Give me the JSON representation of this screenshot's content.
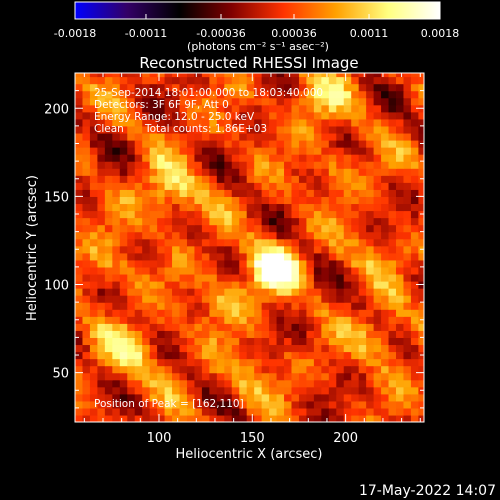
{
  "window": {
    "timestamp": "17-May-2022 14:07"
  },
  "colorbar": {
    "ticks": [
      "-0.0018",
      "-0.0011",
      "-0.00036",
      "0.00036",
      "0.0011",
      "0.0018"
    ],
    "unit_label": "(photons cm⁻² s⁻¹ asec⁻²)"
  },
  "image_info": {
    "time_range": "25-Sep-2014 18:01:00.000 to 18:03:40.000",
    "detectors": "Detectors: 3F 6F 9F, Att 0",
    "energy_range": "Energy Range: 12.0 - 25.0 keV",
    "clean_label": "Clean",
    "total_counts": "Total counts: 1.86E+03",
    "peak_position": "Position of Peak = [162,110]"
  },
  "chart_data": {
    "type": "heatmap",
    "title": "Reconstructed RHESSI Image",
    "xlabel": "Heliocentric X (arcsec)",
    "ylabel": "Heliocentric Y (arcsec)",
    "xlim": [
      55,
      242
    ],
    "ylim": [
      22,
      220
    ],
    "xticks": [
      100,
      150,
      200
    ],
    "yticks": [
      50,
      100,
      150,
      200
    ],
    "colorbar_range": [
      -0.0018,
      0.0018
    ],
    "colormap": [
      "#0000ff",
      "#330066",
      "#000000",
      "#800000",
      "#ff3300",
      "#ffa000",
      "#ffff80",
      "#ffffff"
    ],
    "peak": {
      "x": 162,
      "y": 110,
      "value": 0.0018
    },
    "sources": [
      {
        "x": 162,
        "y": 110,
        "amplitude": 0.0018
      },
      {
        "x": 105,
        "y": 152,
        "amplitude": 0.0009
      },
      {
        "x": 85,
        "y": 62,
        "amplitude": 0.0008
      },
      {
        "x": 185,
        "y": 206,
        "amplitude": 0.0007
      },
      {
        "x": 135,
        "y": 92,
        "amplitude": 0.0006
      },
      {
        "x": 220,
        "y": 70,
        "amplitude": 0.0006
      },
      {
        "x": 70,
        "y": 110,
        "amplitude": 0.0005
      },
      {
        "x": 195,
        "y": 165,
        "amplitude": 0.0004
      },
      {
        "x": 150,
        "y": 48,
        "amplitude": 0.0005
      },
      {
        "x": 215,
        "y": 118,
        "amplitude": 0.0004
      }
    ]
  }
}
